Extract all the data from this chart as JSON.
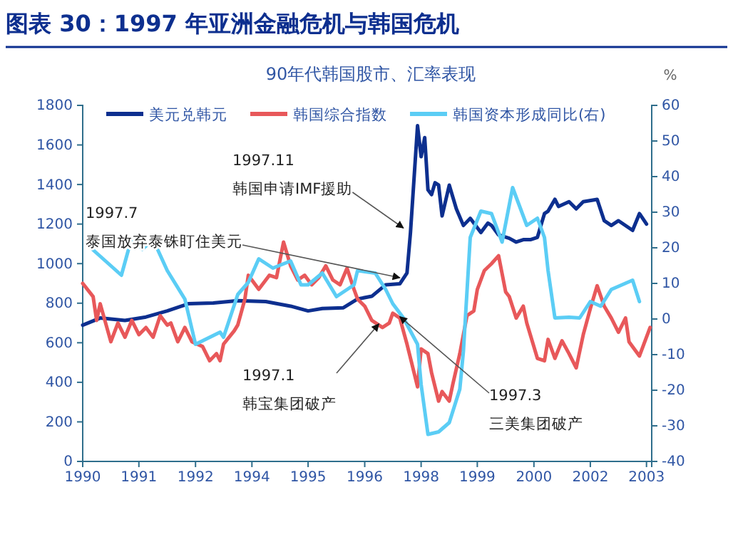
{
  "chart_data": {
    "type": "line",
    "title": "图表 30：1997 年亚洲金融危机与韩国危机",
    "subtitle": "90年代韩国股市、汇率表现",
    "y2label": "%",
    "xlim": [
      "1990-01",
      "2003-06-15"
    ],
    "xticks": [
      {
        "value": "1990-01",
        "label": "1990"
      },
      {
        "value": "1991-05",
        "label": "1991"
      },
      {
        "value": "1992-09",
        "label": "1992"
      },
      {
        "value": "1994-01",
        "label": "1994"
      },
      {
        "value": "1995-05",
        "label": "1995"
      },
      {
        "value": "1996-09",
        "label": "1996"
      },
      {
        "value": "1998-01",
        "label": "1998"
      },
      {
        "value": "1999-05",
        "label": "1999"
      },
      {
        "value": "2000-09",
        "label": "2000"
      },
      {
        "value": "2002-01",
        "label": "2002"
      },
      {
        "value": "2003-05",
        "label": "2003"
      }
    ],
    "ylim": [
      0,
      1800
    ],
    "yticks": [
      0,
      200,
      400,
      600,
      800,
      1000,
      1200,
      1400,
      1600,
      1800
    ],
    "y2lim": [
      -40,
      60
    ],
    "y2ticks": [
      -40,
      -30,
      -20,
      -10,
      0,
      10,
      20,
      30,
      40,
      50,
      60
    ],
    "grid": false,
    "legend": "top",
    "line_style": "solid",
    "series": [
      {
        "name": "美元兑韩元",
        "color": "#0d2f8f",
        "x": [
          "1990-01",
          "1990-06",
          "1991-01",
          "1991-07",
          "1992-01",
          "1992-07",
          "1993-02",
          "1993-09",
          "1994-05",
          "1994-12",
          "1995-05",
          "1995-09",
          "1996-03",
          "1996-07",
          "1996-11",
          "1997-03",
          "1997-07",
          "1997-09",
          "1997-10",
          "1997-12",
          "1998-01",
          "1998-02",
          "1998-03",
          "1998-04",
          "1998-05",
          "1998-06",
          "1998-07",
          "1998-09",
          "1998-11",
          "1999-01",
          "1999-03",
          "1999-06",
          "1999-08",
          "1999-09",
          "1999-11",
          "2000-02",
          "2000-04",
          "2000-06",
          "2000-08",
          "2000-10",
          "2000-12",
          "2001-01",
          "2001-03",
          "2001-04",
          "2001-07",
          "2001-09",
          "2001-11",
          "2002-03",
          "2002-05",
          "2002-07",
          "2002-09",
          "2003-01",
          "2003-03",
          "2003-05"
        ],
        "values": [
          689,
          725,
          713,
          730,
          761,
          797,
          801,
          813,
          808,
          785,
          761,
          773,
          777,
          821,
          835,
          893,
          898,
          953,
          1157,
          1697,
          1541,
          1637,
          1373,
          1349,
          1409,
          1397,
          1241,
          1397,
          1277,
          1193,
          1229,
          1157,
          1205,
          1193,
          1145,
          1128,
          1109,
          1121,
          1121,
          1133,
          1253,
          1265,
          1325,
          1289,
          1313,
          1277,
          1313,
          1325,
          1217,
          1193,
          1217,
          1168,
          1253,
          1200
        ]
      },
      {
        "name": "韩国综合指数",
        "color": "#e8585a",
        "x": [
          "1990-01",
          "1990-04",
          "1990-05",
          "1990-06",
          "1990-09",
          "1990-11",
          "1991-01",
          "1991-03",
          "1991-05",
          "1991-07",
          "1991-09",
          "1991-11",
          "1992-01",
          "1992-02",
          "1992-04",
          "1992-06",
          "1992-08",
          "1992-11",
          "1993-01",
          "1993-03",
          "1993-04",
          "1993-05",
          "1993-08",
          "1993-09",
          "1993-11",
          "1993-12",
          "1994-03",
          "1994-06",
          "1994-08",
          "1994-10",
          "1994-12",
          "1995-02",
          "1995-04",
          "1995-06",
          "1995-08",
          "1995-10",
          "1995-12",
          "1996-02",
          "1996-04",
          "1996-06",
          "1996-07",
          "1996-09",
          "1996-11",
          "1997-02",
          "1997-04",
          "1997-05",
          "1997-07",
          "1997-09",
          "1997-11",
          "1997-12",
          "1998-01",
          "1998-03",
          "1998-04",
          "1998-06",
          "1998-07",
          "1998-09",
          "1998-10",
          "1998-12",
          "1999-02",
          "1999-04",
          "1999-05",
          "1999-07",
          "1999-09",
          "1999-11",
          "2000-01",
          "2000-02",
          "2000-04",
          "2000-06",
          "2000-07",
          "2000-10",
          "2000-12",
          "2001-01",
          "2001-03",
          "2001-05",
          "2001-07",
          "2001-09",
          "2001-11",
          "2002-01",
          "2002-03",
          "2002-05",
          "2002-07",
          "2002-09",
          "2002-11",
          "2002-12",
          "2003-03",
          "2003-06"
        ],
        "values": [
          900,
          833,
          713,
          797,
          605,
          700,
          628,
          713,
          641,
          677,
          628,
          737,
          689,
          700,
          605,
          677,
          605,
          581,
          509,
          545,
          509,
          593,
          660,
          690,
          820,
          941,
          870,
          941,
          929,
          1109,
          989,
          917,
          941,
          893,
          929,
          989,
          917,
          893,
          977,
          869,
          821,
          785,
          713,
          677,
          700,
          749,
          725,
          593,
          449,
          377,
          569,
          545,
          449,
          305,
          353,
          305,
          389,
          545,
          737,
          761,
          869,
          965,
          1000,
          1040,
          857,
          833,
          725,
          785,
          700,
          521,
          509,
          617,
          521,
          610,
          545,
          473,
          641,
          773,
          888,
          785,
          725,
          653,
          725,
          605,
          533,
          677
        ]
      },
      {
        "name": "韩国资本形成同比(右)",
        "color": "#5bcdf5",
        "axis": "y2",
        "x": [
          "1990-03",
          "1990-12",
          "1991-03",
          "1991-06",
          "1991-09",
          "1992-01",
          "1992-06",
          "1992-09",
          "1993-04",
          "1993-05",
          "1993-09",
          "1993-12",
          "1994-03",
          "1994-07",
          "1994-12",
          "1995-03",
          "1995-05",
          "1995-09",
          "1996-01",
          "1996-06",
          "1996-07",
          "1996-12",
          "1997-03",
          "1997-05",
          "1997-08",
          "1997-12",
          "1998-01",
          "1998-03",
          "1998-06",
          "1998-09",
          "1998-12",
          "1999-01",
          "1999-03",
          "1999-06",
          "1999-09",
          "1999-12",
          "2000-03",
          "2000-07",
          "2000-10",
          "2000-12",
          "2001-01",
          "2001-03",
          "2001-07",
          "2001-10",
          "2002-01",
          "2002-04",
          "2002-07",
          "2002-10",
          "2003-01",
          "2003-03"
        ],
        "values": [
          20.3,
          12.3,
          22.9,
          19.6,
          22.3,
          13.6,
          5.6,
          -7.1,
          -3.7,
          -5.1,
          6.9,
          10.3,
          16.9,
          14.3,
          16.3,
          9.6,
          9.6,
          12.9,
          6.3,
          9.6,
          13.6,
          12.9,
          8.3,
          4.3,
          0.3,
          -7.1,
          -18.4,
          -32.4,
          -31.7,
          -29.1,
          -19.7,
          -9.1,
          22.9,
          30.3,
          29.6,
          21.6,
          36.9,
          26.3,
          28.3,
          22.9,
          13.6,
          0.3,
          0.5,
          0.3,
          4.9,
          3.6,
          8.3,
          9.6,
          10.9,
          4.9
        ]
      }
    ],
    "annotations": [
      {
        "text": "1997.11\n韩国申请IMF援助",
        "x": "1997-08",
        "y": 1180
      },
      {
        "text": "1997.7\n泰国放弃泰铢盯住美元",
        "x": "1997-07",
        "y": 929
      },
      {
        "text": "1997.1\n韩宝集团破产",
        "x": "1997-01",
        "y": 695
      },
      {
        "text": "1997.3\n三美集团破产",
        "x": "1997-07",
        "y": 732
      }
    ]
  }
}
